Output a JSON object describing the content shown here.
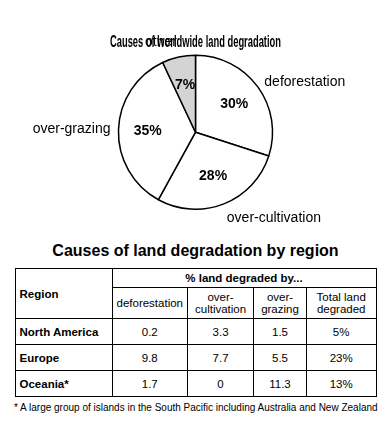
{
  "chart_data": {
    "type": "pie",
    "title": "Causes of worldwide land degradation",
    "categories": [
      "deforestation",
      "over-cultivation",
      "over-grazing",
      "other"
    ],
    "values": [
      30,
      28,
      35,
      7
    ],
    "value_labels": [
      "30%",
      "28%",
      "35%",
      "7%"
    ],
    "colors": [
      "#ffffff",
      "#ffffff",
      "#ffffff",
      "#d4d4d4"
    ],
    "data_labels": true
  },
  "table": {
    "title": "Causes of land degradation by region",
    "header": [
      "Region",
      "% land degraded by..."
    ],
    "subheader": [
      "deforestation",
      "over-cultivation",
      "over-grazing",
      "Total land degraded"
    ],
    "rows": [
      [
        "North America",
        "0.2",
        "3.3",
        "1.5",
        "5%"
      ],
      [
        "Europe",
        "9.8",
        "7.7",
        "5.5",
        "23%"
      ],
      [
        "Oceania*",
        "1.7",
        "0",
        "11.3",
        "13%"
      ]
    ],
    "footnote": "* A large group of islands in the South Pacific including Australia and New Zealand"
  }
}
